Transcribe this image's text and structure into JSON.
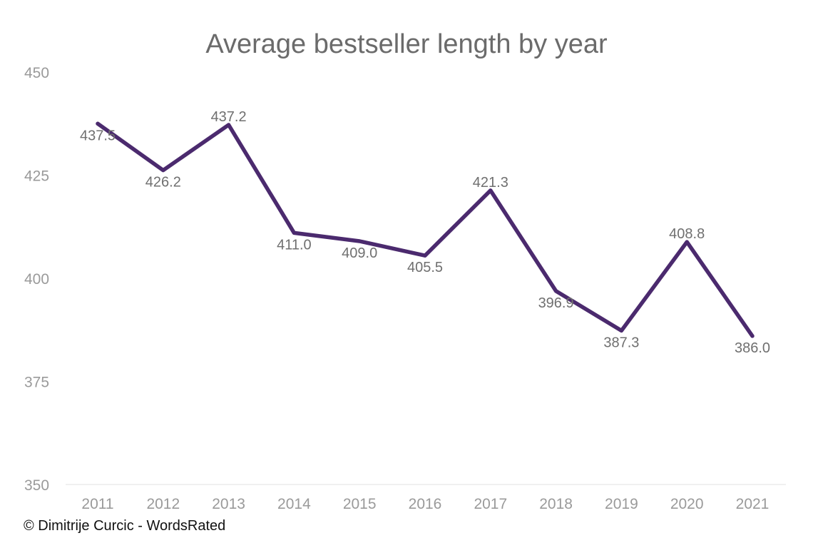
{
  "colors": {
    "series": "#4b2a6e"
  },
  "credit": "© Dimitrije Curcic - WordsRated",
  "chart_data": {
    "type": "line",
    "title": "Average bestseller length by year",
    "xlabel": "",
    "ylabel": "",
    "categories": [
      "2011",
      "2012",
      "2013",
      "2014",
      "2015",
      "2016",
      "2017",
      "2018",
      "2019",
      "2020",
      "2021"
    ],
    "values": [
      437.5,
      426.2,
      437.2,
      411.0,
      409.0,
      405.5,
      421.3,
      396.9,
      387.3,
      408.8,
      386.0
    ],
    "data_labels": [
      "437.5",
      "426.2",
      "437.2",
      "411.0",
      "409.0",
      "405.5",
      "421.3",
      "396.9",
      "387.3",
      "408.8",
      "386.0"
    ],
    "ylim": [
      350,
      450
    ],
    "yticks": [
      "350",
      "375",
      "400",
      "425",
      "450"
    ],
    "grid": false,
    "legend": "none"
  }
}
